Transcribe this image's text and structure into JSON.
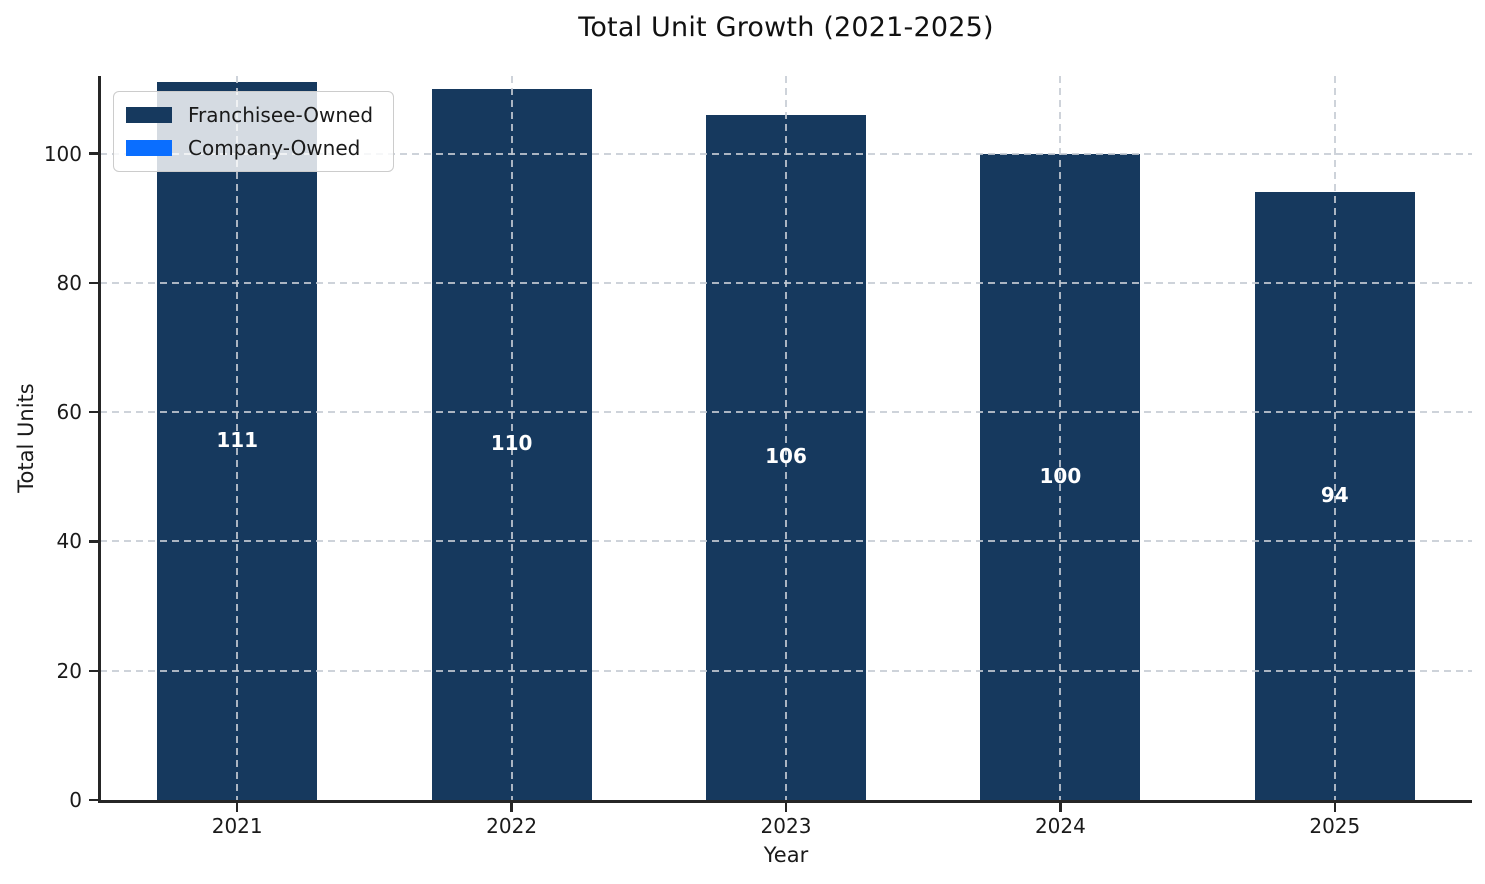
{
  "chart_data": {
    "type": "bar",
    "stacked": true,
    "title": "Total Unit Growth (2021-2025)",
    "xlabel": "Year",
    "ylabel": "Total Units",
    "categories": [
      "2021",
      "2022",
      "2023",
      "2024",
      "2025"
    ],
    "series": [
      {
        "name": "Franchisee-Owned",
        "color": "#16395E",
        "values": [
          111,
          110,
          106,
          100,
          94
        ]
      },
      {
        "name": "Company-Owned",
        "color": "#0A6EFF",
        "values": [
          0,
          0,
          0,
          0,
          0
        ]
      }
    ],
    "bar_labels": [
      "111",
      "110",
      "106",
      "100",
      "94"
    ],
    "bar_label_color": "#ffffff",
    "yticks": [
      0,
      20,
      40,
      60,
      80,
      100
    ],
    "ylim": [
      0,
      112
    ],
    "grid": "dashed both axes, light gray, drawn over bars",
    "legend_position": "upper left",
    "visible_spines": [
      "left",
      "bottom"
    ]
  },
  "colors": {
    "background": "#ffffff",
    "bar_navy": "#16395E",
    "accent_blue": "#0A6EFF",
    "grid": "#c5cbd3",
    "spine": "#262626",
    "text": "#1a1a1a"
  }
}
